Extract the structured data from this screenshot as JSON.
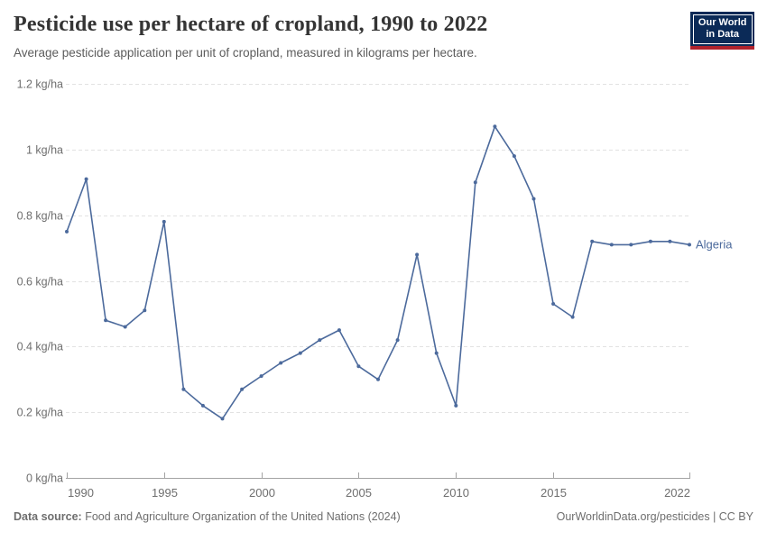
{
  "header": {
    "title": "Pesticide use per hectare of cropland, 1990 to 2022",
    "subtitle": "Average pesticide application per unit of cropland, measured in kilograms per hectare.",
    "logo": {
      "line1": "Our World",
      "line2": "in Data"
    }
  },
  "chart_data": {
    "type": "line",
    "title": "Pesticide use per hectare of cropland, 1990 to 2022",
    "ylabel_unit": "kg/ha",
    "ylim": [
      0,
      1.2
    ],
    "xlim": [
      1990,
      2022
    ],
    "grid": "horizontal-dashed",
    "legend_position": "end-of-line-label",
    "x": [
      1990,
      1991,
      1992,
      1993,
      1994,
      1995,
      1996,
      1997,
      1998,
      1999,
      2000,
      2001,
      2002,
      2003,
      2004,
      2005,
      2006,
      2007,
      2008,
      2009,
      2010,
      2011,
      2012,
      2013,
      2014,
      2015,
      2016,
      2017,
      2018,
      2019,
      2020,
      2021,
      2022
    ],
    "series": [
      {
        "name": "Algeria",
        "values": [
          0.75,
          0.91,
          0.48,
          0.46,
          0.51,
          0.78,
          0.27,
          0.22,
          0.18,
          0.27,
          0.31,
          0.35,
          0.38,
          0.42,
          0.45,
          0.34,
          0.3,
          0.42,
          0.68,
          0.38,
          0.22,
          0.9,
          1.07,
          0.98,
          0.85,
          0.53,
          0.49,
          0.72,
          0.71,
          0.71,
          0.72,
          0.72,
          0.71
        ]
      }
    ],
    "yticks": [
      {
        "value": 1.2,
        "label": "1.2 kg/ha"
      },
      {
        "value": 1.0,
        "label": "1 kg/ha"
      },
      {
        "value": 0.8,
        "label": "0.8 kg/ha"
      },
      {
        "value": 0.6,
        "label": "0.6 kg/ha"
      },
      {
        "value": 0.4,
        "label": "0.4 kg/ha"
      },
      {
        "value": 0.2,
        "label": "0.2 kg/ha"
      },
      {
        "value": 0,
        "label": "0 kg/ha"
      }
    ],
    "xticks": [
      {
        "value": 1990,
        "label": "1990"
      },
      {
        "value": 1995,
        "label": "1995"
      },
      {
        "value": 2000,
        "label": "2000"
      },
      {
        "value": 2005,
        "label": "2005"
      },
      {
        "value": 2010,
        "label": "2010"
      },
      {
        "value": 2015,
        "label": "2015"
      },
      {
        "value": 2022,
        "label": "2022"
      }
    ]
  },
  "colors": {
    "line": "#4C6A9C",
    "gridline": "#e2e2e2",
    "axis": "#a3a3a3",
    "tick_label": "#6e6e6e",
    "logo_navy": "#0b2a57",
    "logo_red": "#b0232d"
  },
  "footer": {
    "source_label": "Data source:",
    "source_text": " Food and Agriculture Organization of the United Nations (2024)",
    "credit": "OurWorldinData.org/pesticides | CC BY"
  }
}
